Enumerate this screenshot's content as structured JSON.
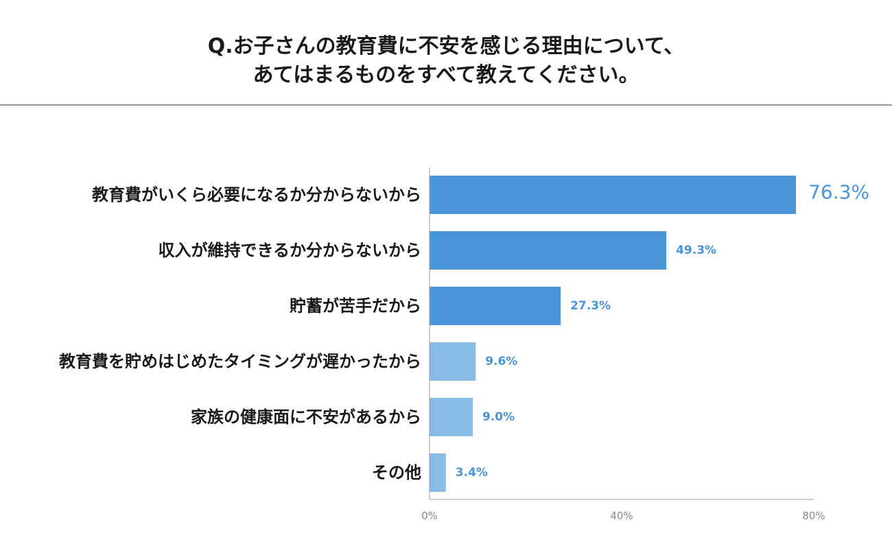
{
  "title": {
    "line1": "Q.お子さんの教育費に不安を感じる理由について、",
    "line2": "あてはまるものをすべて教えてください。"
  },
  "chart_data": {
    "type": "bar",
    "orientation": "horizontal",
    "title": "Q.お子さんの教育費に不安を感じる理由について、あてはまるものをすべて教えてください。",
    "categories": [
      "教育費がいくら必要になるか分からないから",
      "収入が維持できるか分からないから",
      "貯蓄が苦手だから",
      "教育費を貯めはじめたタイミングが遅かったから",
      "家族の健康面に不安があるから",
      "その他"
    ],
    "values": [
      76.3,
      49.3,
      27.3,
      9.6,
      9.0,
      3.4
    ],
    "value_labels": [
      "76.3%",
      "49.3%",
      "27.3%",
      "9.6%",
      "9.0%",
      "3.4%"
    ],
    "xlim": [
      0,
      80
    ],
    "x_ticks": [
      "0%",
      "40%",
      "80%"
    ],
    "x_tick_values": [
      0,
      40,
      80
    ],
    "grid": false,
    "colors": {
      "primary": "#4a94d8",
      "secondary": "#8abce8",
      "value_text": "#4a94d8"
    }
  }
}
